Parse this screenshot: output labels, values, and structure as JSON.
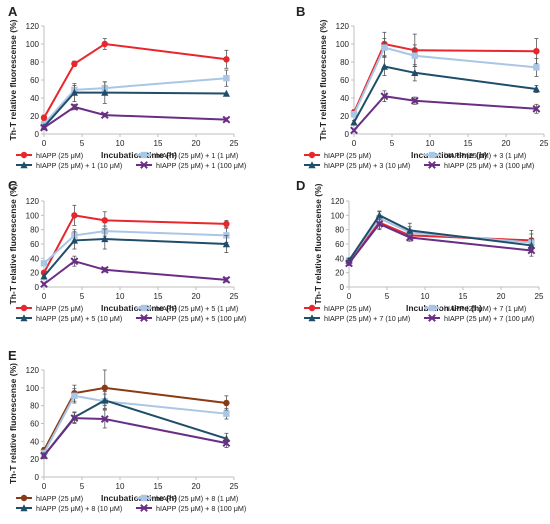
{
  "figure": {
    "colors": {
      "red": "#e8262b",
      "light_blue": "#a9c6e6",
      "dark_teal": "#1f4e6b",
      "purple": "#6a2e86",
      "brown": "#8b3a16",
      "axis": "#bfbfbf",
      "text": "#222222"
    }
  },
  "chart_data": [
    {
      "panel": "A",
      "type": "line",
      "ylabel": "Th-T relative fluorescense (%)",
      "xlabel": "Incubation time (h)",
      "xlim": [
        0,
        25
      ],
      "ylim": [
        0,
        120
      ],
      "xticks": [
        "0",
        "5",
        "10",
        "15",
        "20",
        "25"
      ],
      "yticks": [
        "0",
        "20",
        "40",
        "60",
        "80",
        "100",
        "120"
      ],
      "x": [
        0,
        4,
        8,
        24
      ],
      "series": [
        {
          "name": "hIAPP (25 μM)",
          "color": "#e8262b",
          "marker": "circle",
          "values": [
            18,
            78,
            100,
            83
          ],
          "errors": [
            3,
            3,
            6,
            10
          ]
        },
        {
          "name": "hIAPP (25 μM) + 1 (1 μM)",
          "color": "#a9c6e6",
          "marker": "square",
          "values": [
            11,
            49,
            51,
            62
          ],
          "errors": [
            2,
            5,
            7,
            9
          ]
        },
        {
          "name": "hIAPP (25 μM) + 1 (10 μM)",
          "color": "#1f4e6b",
          "marker": "triangle",
          "values": [
            8,
            46,
            46,
            45
          ],
          "errors": [
            2,
            10,
            12,
            0
          ]
        },
        {
          "name": "hIAPP (25 μM) + 1 (100 μM)",
          "color": "#6a2e86",
          "marker": "x",
          "values": [
            7,
            30,
            21,
            16
          ],
          "errors": [
            1,
            3,
            2,
            2
          ]
        }
      ]
    },
    {
      "panel": "B",
      "type": "line",
      "ylabel": "Th-T relative fluorescense (%)",
      "xlabel": "Incubation time (h)",
      "xlim": [
        0,
        25
      ],
      "ylim": [
        0,
        120
      ],
      "xticks": [
        "0",
        "5",
        "10",
        "15",
        "20",
        "25"
      ],
      "yticks": [
        "0",
        "20",
        "40",
        "60",
        "80",
        "100",
        "120"
      ],
      "x": [
        0,
        4,
        8,
        24
      ],
      "series": [
        {
          "name": "hIAPP (25 μM)",
          "color": "#e8262b",
          "marker": "circle",
          "values": [
            24,
            100,
            93,
            92
          ],
          "errors": [
            3,
            13,
            18,
            14
          ]
        },
        {
          "name": "hIAPP (25 μM) + 3 (1 μM)",
          "color": "#a9c6e6",
          "marker": "square",
          "values": [
            22,
            96,
            87,
            74
          ],
          "errors": [
            3,
            10,
            12,
            10
          ]
        },
        {
          "name": "hIAPP (25 μM) + 3 (10 μM)",
          "color": "#1f4e6b",
          "marker": "triangle",
          "values": [
            13,
            75,
            68,
            50
          ],
          "errors": [
            2,
            10,
            9,
            4
          ]
        },
        {
          "name": "hIAPP (25 μM) + 3 (100 μM)",
          "color": "#6a2e86",
          "marker": "x",
          "values": [
            4,
            42,
            37,
            28
          ],
          "errors": [
            1,
            6,
            4,
            5
          ]
        }
      ]
    },
    {
      "panel": "C",
      "type": "line",
      "ylabel": "Th-T relative fluorescense (%)",
      "xlabel": "Incubation time (h)",
      "xlim": [
        0,
        25
      ],
      "ylim": [
        0,
        120
      ],
      "xticks": [
        "0",
        "5",
        "10",
        "15",
        "20",
        "25"
      ],
      "yticks": [
        "0",
        "20",
        "40",
        "60",
        "80",
        "100",
        "120"
      ],
      "x": [
        0,
        4,
        8,
        24
      ],
      "series": [
        {
          "name": "hIAPP (25 μM)",
          "color": "#e8262b",
          "marker": "circle",
          "values": [
            20,
            100,
            93,
            88
          ],
          "errors": [
            3,
            14,
            12,
            5
          ]
        },
        {
          "name": "hIAPP (25 μM) + 5 (1 μM)",
          "color": "#a9c6e6",
          "marker": "square",
          "values": [
            33,
            72,
            78,
            72
          ],
          "errors": [
            3,
            8,
            7,
            10
          ]
        },
        {
          "name": "hIAPP (25 μM) + 5 (10 μM)",
          "color": "#1f4e6b",
          "marker": "triangle",
          "values": [
            15,
            65,
            67,
            60
          ],
          "errors": [
            2,
            12,
            14,
            12
          ]
        },
        {
          "name": "hIAPP (25 μM) + 5 (100 μM)",
          "color": "#6a2e86",
          "marker": "x",
          "values": [
            4,
            36,
            24,
            10
          ],
          "errors": [
            1,
            7,
            3,
            3
          ]
        }
      ]
    },
    {
      "panel": "D",
      "type": "line",
      "ylabel": "Th-T relative fluorescense (%)",
      "xlabel": "Incubation time (h)",
      "xlim": [
        0,
        25
      ],
      "ylim": [
        0,
        120
      ],
      "xticks": [
        "0",
        "5",
        "10",
        "15",
        "20",
        "25"
      ],
      "yticks": [
        "0",
        "20",
        "40",
        "60",
        "80",
        "100",
        "120"
      ],
      "x": [
        0,
        4,
        8,
        24
      ],
      "series": [
        {
          "name": "hIAPP (25 μM)",
          "color": "#e8262b",
          "marker": "circle",
          "values": [
            35,
            90,
            72,
            65
          ],
          "errors": [
            3,
            8,
            8,
            14
          ]
        },
        {
          "name": "hIAPP (25 μM) + 7 (1 μM)",
          "color": "#a9c6e6",
          "marker": "square",
          "values": [
            37,
            96,
            76,
            62
          ],
          "errors": [
            3,
            9,
            8,
            12
          ]
        },
        {
          "name": "hIAPP (25 μM) + 7 (10 μM)",
          "color": "#1f4e6b",
          "marker": "triangle",
          "values": [
            37,
            100,
            79,
            58
          ],
          "errors": [
            3,
            6,
            10,
            10
          ]
        },
        {
          "name": "hIAPP (25 μM) + 7 (100 μM)",
          "color": "#6a2e86",
          "marker": "x",
          "values": [
            33,
            88,
            69,
            51
          ],
          "errors": [
            3,
            8,
            5,
            8
          ]
        }
      ]
    },
    {
      "panel": "E",
      "type": "line",
      "ylabel": "Th-T relative fluorescense (%)",
      "xlabel": "Incubation time (h)",
      "xlim": [
        0,
        25
      ],
      "ylim": [
        0,
        120
      ],
      "xticks": [
        "0",
        "5",
        "10",
        "15",
        "20",
        "25"
      ],
      "yticks": [
        "0",
        "20",
        "40",
        "60",
        "80",
        "100",
        "120"
      ],
      "x": [
        0,
        4,
        8,
        24
      ],
      "series": [
        {
          "name": "hIAPP (25 μM)",
          "color": "#8b3a16",
          "marker": "circle",
          "values": [
            30,
            94,
            100,
            83
          ],
          "errors": [
            3,
            9,
            20,
            8
          ]
        },
        {
          "name": "hIAPP (25 μM) + 8 (1 μM)",
          "color": "#a9c6e6",
          "marker": "square",
          "values": [
            27,
            91,
            85,
            71
          ],
          "errors": [
            3,
            8,
            8,
            6
          ]
        },
        {
          "name": "hIAPP (25 μM) + 8 (10 μM)",
          "color": "#1f4e6b",
          "marker": "triangle",
          "values": [
            24,
            67,
            86,
            43
          ],
          "errors": [
            3,
            6,
            10,
            6
          ]
        },
        {
          "name": "hIAPP (25 μM) + 8 (100 μM)",
          "color": "#6a2e86",
          "marker": "x",
          "values": [
            24,
            66,
            65,
            38
          ],
          "errors": [
            3,
            6,
            10,
            5
          ]
        }
      ]
    }
  ]
}
